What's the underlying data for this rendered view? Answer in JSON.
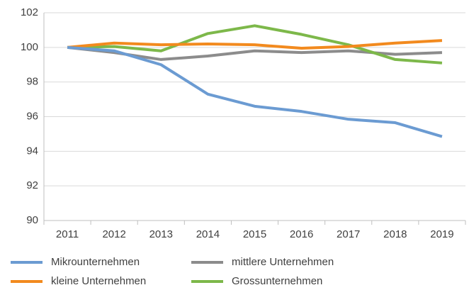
{
  "chart_data": {
    "type": "line",
    "categories": [
      "2011",
      "2012",
      "2013",
      "2014",
      "2015",
      "2016",
      "2017",
      "2018",
      "2019"
    ],
    "series": [
      {
        "name": "Mikrounternehmen",
        "color": "#6b9bd2",
        "values": [
          100,
          99.8,
          99.0,
          97.3,
          96.6,
          96.3,
          95.85,
          95.65,
          94.85
        ]
      },
      {
        "name": "kleine Unternehmen",
        "color": "#f28a1e",
        "values": [
          100,
          100.25,
          100.15,
          100.2,
          100.15,
          99.95,
          100.05,
          100.25,
          100.4
        ]
      },
      {
        "name": "mittlere Unternehmen",
        "color": "#8c8c8c",
        "values": [
          100,
          99.7,
          99.3,
          99.5,
          99.8,
          99.7,
          99.8,
          99.6,
          99.7
        ]
      },
      {
        "name": "Grossunternehmen",
        "color": "#7db84a",
        "values": [
          100,
          100.05,
          99.8,
          100.8,
          101.25,
          100.75,
          100.15,
          99.3,
          99.1
        ]
      }
    ],
    "ylim": [
      90,
      102
    ],
    "yticks": [
      90,
      92,
      94,
      96,
      98,
      100,
      102
    ],
    "grid": true
  }
}
